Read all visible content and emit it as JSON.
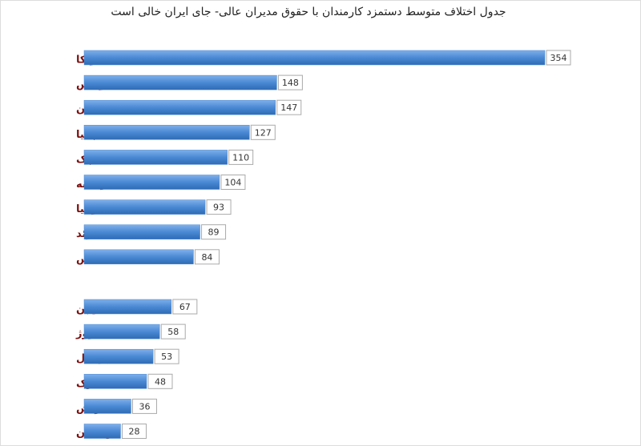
{
  "chart_data": {
    "type": "bar",
    "orientation": "horizontal",
    "title": "جدول اختلاف متوسط دستمزد کارمندان با حقوق مدیران عالی- جای ایران خالی است",
    "categories": [
      "آمریکا",
      "سوییس",
      "آلمان",
      "اسپانیا",
      "چک",
      "فرانسه",
      "استرالیا",
      "سوئد",
      "انگلیس",
      null,
      "ژاپن",
      "نروژ",
      "پرتغال",
      "دانمارک",
      "اتریش",
      "لهستان"
    ],
    "values": [
      354,
      148,
      147,
      127,
      110,
      104,
      93,
      89,
      84,
      null,
      67,
      58,
      53,
      48,
      36,
      28
    ],
    "color": "#4a89d4",
    "label_color": "#7a1010"
  }
}
